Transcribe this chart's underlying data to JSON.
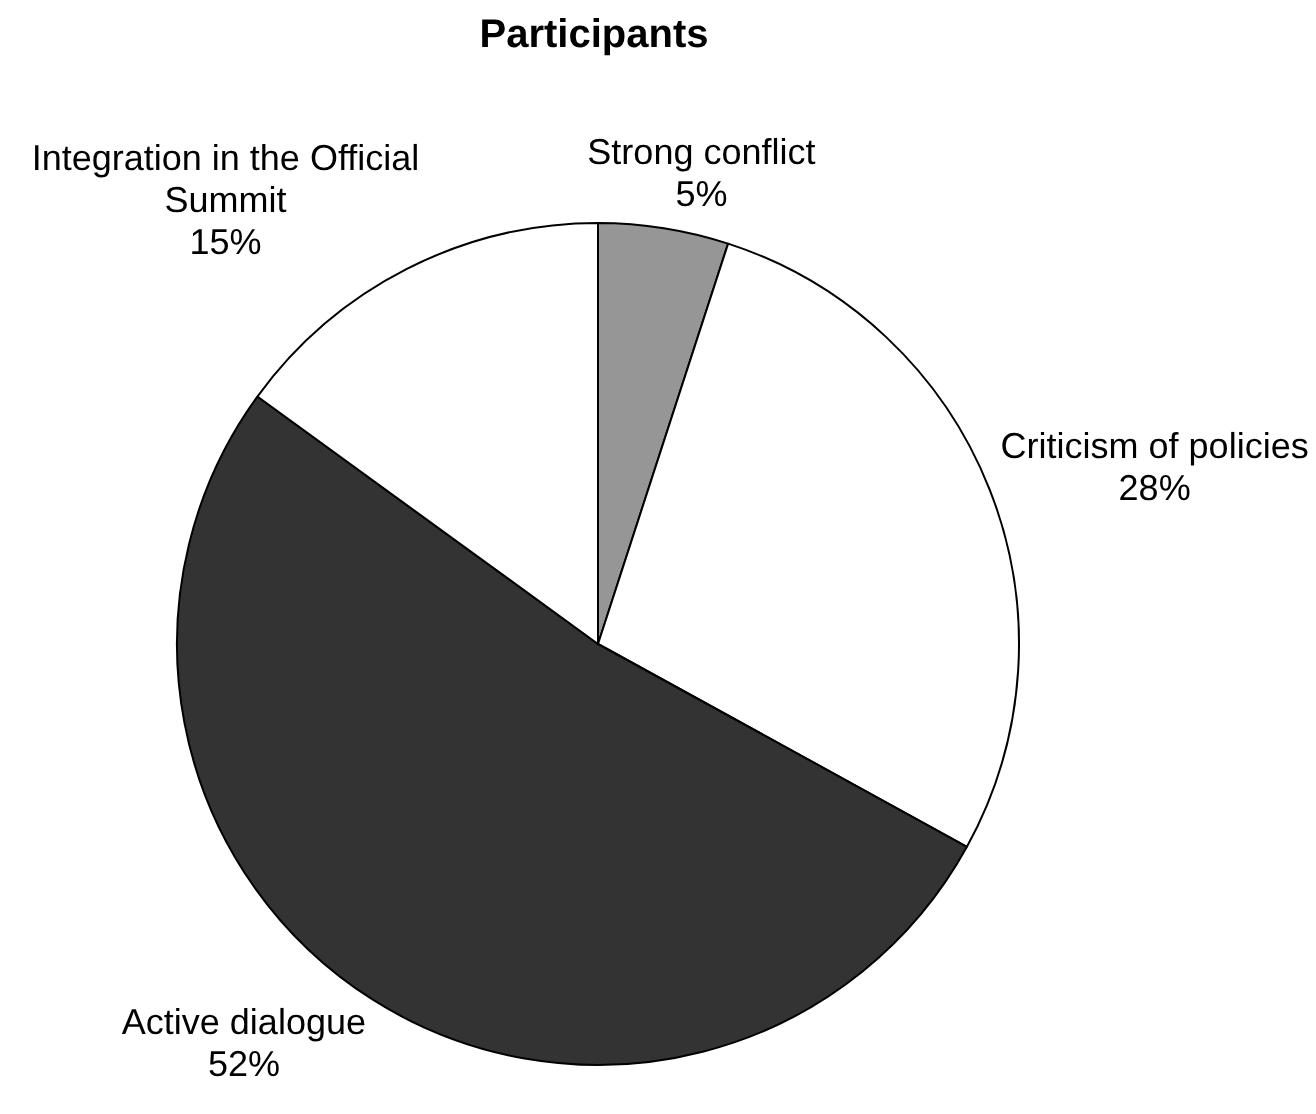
{
  "chart_data": {
    "type": "pie",
    "title": "Participants",
    "categories": [
      "Strong conflict",
      "Criticism of policies",
      "Active dialogue",
      "Integration in the Official Summit"
    ],
    "values": [
      5,
      28,
      52,
      15
    ],
    "colors": [
      "#969696",
      "#ffffff",
      "#333333",
      "#ffffff"
    ],
    "value_labels": [
      "5%",
      "28%",
      "52%",
      "15%"
    ]
  }
}
